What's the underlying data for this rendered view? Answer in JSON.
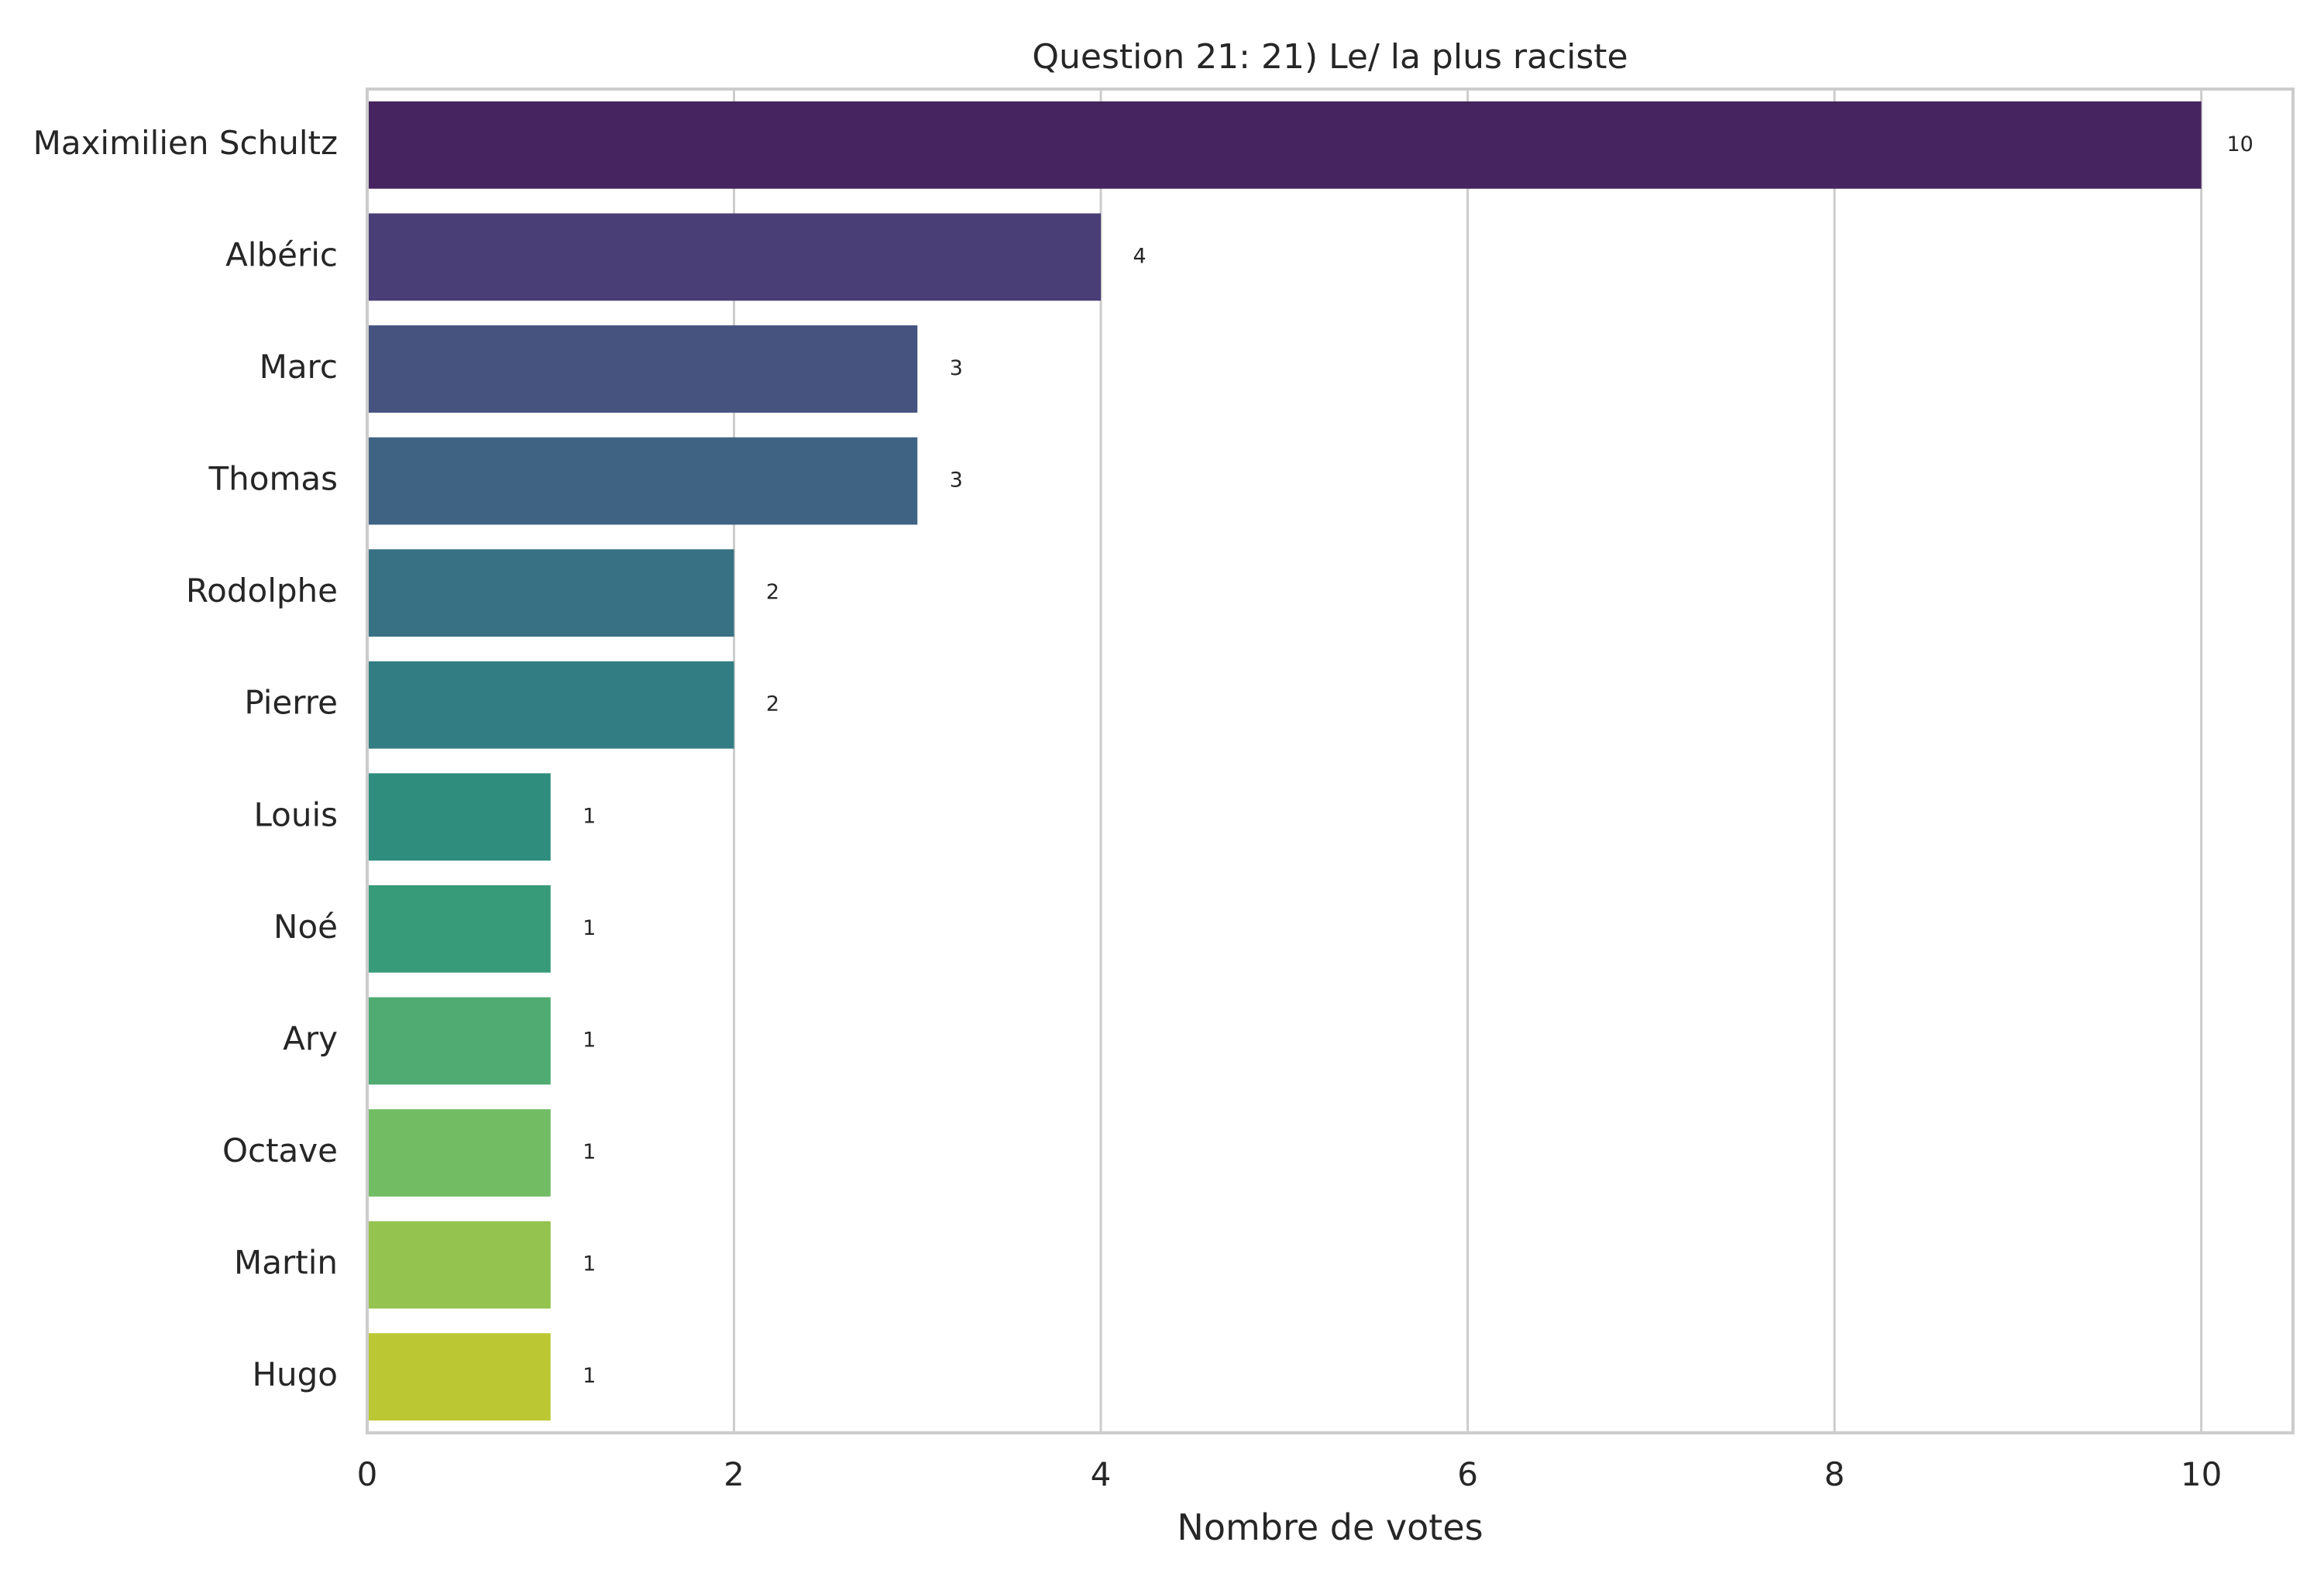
{
  "chart_data": {
    "type": "bar",
    "orientation": "horizontal",
    "title": "Question 21: 21) Le/ la plus raciste",
    "xlabel": "Nombre de votes",
    "ylabel": "",
    "xlim": [
      0,
      10.5
    ],
    "xticks": [
      0,
      2,
      4,
      6,
      8,
      10
    ],
    "grid": "vertical",
    "categories": [
      "Maximilien Schultz",
      "Albéric",
      "Marc",
      "Thomas",
      "Rodolphe",
      "Pierre",
      "Louis",
      "Noé",
      "Ary",
      "Octave",
      "Martin",
      "Hugo"
    ],
    "values": [
      10,
      4,
      3,
      3,
      2,
      2,
      1,
      1,
      1,
      1,
      1,
      1
    ],
    "colors": [
      "#46245f",
      "#4a3e76",
      "#46537f",
      "#3f6382",
      "#377183",
      "#327d83",
      "#2e8d7c",
      "#379b79",
      "#4fab71",
      "#72bd64",
      "#94c34f",
      "#bcc734"
    ]
  }
}
